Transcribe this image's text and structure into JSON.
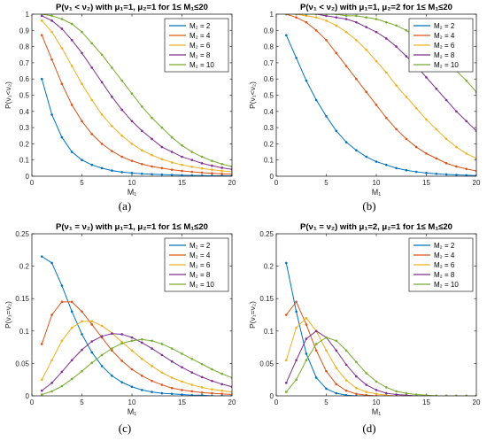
{
  "colors": {
    "series": [
      "#0072BD",
      "#D95319",
      "#EDB120",
      "#7E2F8E",
      "#77AC30"
    ],
    "axis": "#262626",
    "legend_border": "#262626",
    "background": "#ffffff"
  },
  "legend_labels": [
    "M₂ = 2",
    "M₂ = 4",
    "M₂ = 6",
    "M₂ = 8",
    "M₂ = 10"
  ],
  "chart_data": [
    {
      "id": "a",
      "caption": "(a)",
      "type": "line",
      "title": "P(ν₁ < ν₂) with μ₁=1, μ₂=1 for 1≤ M₁≤20",
      "xlabel": "M₁",
      "ylabel": "P(ν₁<ν₂)",
      "xlim": [
        0,
        20
      ],
      "ylim": [
        0,
        1
      ],
      "xticks": [
        0,
        5,
        10,
        15,
        20
      ],
      "yticks": [
        0,
        0.1,
        0.2,
        0.3,
        0.4,
        0.5,
        0.6,
        0.7,
        0.8,
        0.9,
        1
      ],
      "ytick_labels": [
        "0",
        "0.1",
        "0.2",
        "0.3",
        "0.4",
        "0.5",
        "0.6",
        "0.7",
        "0.8",
        "0.9",
        "1"
      ],
      "legend_position": "top-right",
      "grid": false,
      "x": [
        1,
        2,
        3,
        4,
        5,
        6,
        7,
        8,
        9,
        10,
        11,
        12,
        13,
        14,
        15,
        16,
        17,
        18,
        19,
        20
      ],
      "series": [
        {
          "name": "M₂ = 2",
          "values": [
            0.6,
            0.38,
            0.24,
            0.15,
            0.1,
            0.07,
            0.05,
            0.035,
            0.025,
            0.02,
            0.015,
            0.012,
            0.01,
            0.008,
            0.006,
            0.005,
            0.004,
            0.003,
            0.003,
            0.002
          ]
        },
        {
          "name": "M₂ = 4",
          "values": [
            0.87,
            0.72,
            0.57,
            0.44,
            0.34,
            0.26,
            0.2,
            0.155,
            0.12,
            0.095,
            0.075,
            0.06,
            0.05,
            0.04,
            0.033,
            0.027,
            0.022,
            0.018,
            0.015,
            0.012
          ]
        },
        {
          "name": "M₂ = 6",
          "values": [
            0.96,
            0.89,
            0.79,
            0.68,
            0.57,
            0.47,
            0.38,
            0.31,
            0.25,
            0.2,
            0.16,
            0.13,
            0.105,
            0.085,
            0.07,
            0.058,
            0.048,
            0.04,
            0.033,
            0.027
          ]
        },
        {
          "name": "M₂ = 8",
          "values": [
            0.99,
            0.96,
            0.91,
            0.84,
            0.76,
            0.67,
            0.58,
            0.49,
            0.41,
            0.34,
            0.28,
            0.23,
            0.18,
            0.15,
            0.12,
            0.1,
            0.08,
            0.065,
            0.052,
            0.042
          ]
        },
        {
          "name": "M₂ = 10",
          "values": [
            1.0,
            0.99,
            0.97,
            0.94,
            0.89,
            0.82,
            0.75,
            0.67,
            0.59,
            0.51,
            0.43,
            0.36,
            0.3,
            0.24,
            0.19,
            0.15,
            0.12,
            0.095,
            0.075,
            0.06
          ]
        }
      ]
    },
    {
      "id": "b",
      "caption": "(b)",
      "type": "line",
      "title": "P(ν₁ < ν₂) with μ₁=1, μ₂=2 for 1≤ M₁≤20",
      "xlabel": "M₁",
      "ylabel": "P(ν₁<ν₂)",
      "xlim": [
        0,
        20
      ],
      "ylim": [
        0,
        1
      ],
      "xticks": [
        0,
        5,
        10,
        15,
        20
      ],
      "yticks": [
        0,
        0.1,
        0.2,
        0.3,
        0.4,
        0.5,
        0.6,
        0.7,
        0.8,
        0.9,
        1
      ],
      "ytick_labels": [
        "0",
        "0.1",
        "0.2",
        "0.3",
        "0.4",
        "0.5",
        "0.6",
        "0.7",
        "0.8",
        "0.9",
        "1"
      ],
      "legend_position": "top-right",
      "grid": false,
      "x": [
        1,
        2,
        3,
        4,
        5,
        6,
        7,
        8,
        9,
        10,
        11,
        12,
        13,
        14,
        15,
        16,
        17,
        18,
        19,
        20
      ],
      "series": [
        {
          "name": "M₂ = 2",
          "values": [
            0.87,
            0.73,
            0.59,
            0.47,
            0.37,
            0.28,
            0.21,
            0.16,
            0.12,
            0.09,
            0.07,
            0.05,
            0.037,
            0.027,
            0.02,
            0.015,
            0.011,
            0.008,
            0.006,
            0.004
          ]
        },
        {
          "name": "M₂ = 4",
          "values": [
            1.0,
            0.98,
            0.95,
            0.9,
            0.84,
            0.76,
            0.68,
            0.6,
            0.52,
            0.44,
            0.36,
            0.29,
            0.23,
            0.18,
            0.14,
            0.11,
            0.08,
            0.06,
            0.045,
            0.033
          ]
        },
        {
          "name": "M₂ = 6",
          "values": [
            1.0,
            1.0,
            0.99,
            0.98,
            0.96,
            0.93,
            0.89,
            0.84,
            0.78,
            0.71,
            0.64,
            0.56,
            0.49,
            0.42,
            0.35,
            0.29,
            0.23,
            0.18,
            0.14,
            0.11
          ]
        },
        {
          "name": "M₂ = 8",
          "values": [
            1.0,
            1.0,
            1.0,
            1.0,
            0.99,
            0.98,
            0.97,
            0.95,
            0.92,
            0.89,
            0.85,
            0.8,
            0.74,
            0.68,
            0.61,
            0.54,
            0.47,
            0.4,
            0.34,
            0.28
          ]
        },
        {
          "name": "M₂ = 10",
          "values": [
            1.0,
            1.0,
            1.0,
            1.0,
            1.0,
            1.0,
            0.99,
            0.99,
            0.98,
            0.97,
            0.95,
            0.93,
            0.9,
            0.86,
            0.82,
            0.77,
            0.71,
            0.65,
            0.59,
            0.52
          ]
        }
      ]
    },
    {
      "id": "c",
      "caption": "(c)",
      "type": "line",
      "title": "P(ν₁ = ν₂) with μ₁=1, μ₂=1 for 1≤ M₁≤20",
      "xlabel": "M₁",
      "ylabel": "P(ν₁=ν₂)",
      "xlim": [
        0,
        20
      ],
      "ylim": [
        0,
        0.25
      ],
      "xticks": [
        0,
        5,
        10,
        15,
        20
      ],
      "yticks": [
        0,
        0.05,
        0.1,
        0.15,
        0.2,
        0.25
      ],
      "ytick_labels": [
        "0",
        "0.05",
        "0.1",
        "0.15",
        "0.2",
        "0.25"
      ],
      "legend_position": "top-right",
      "grid": false,
      "x": [
        1,
        2,
        3,
        4,
        5,
        6,
        7,
        8,
        9,
        10,
        11,
        12,
        13,
        14,
        15,
        16,
        17,
        18,
        19,
        20
      ],
      "series": [
        {
          "name": "M₂ = 2",
          "values": [
            0.215,
            0.205,
            0.17,
            0.13,
            0.095,
            0.067,
            0.046,
            0.031,
            0.021,
            0.014,
            0.009,
            0.006,
            0.004,
            0.003,
            0.002,
            0.001,
            0.001,
            0.0,
            0.0,
            0.0
          ]
        },
        {
          "name": "M₂ = 4",
          "values": [
            0.08,
            0.125,
            0.145,
            0.145,
            0.13,
            0.11,
            0.09,
            0.07,
            0.054,
            0.041,
            0.031,
            0.023,
            0.017,
            0.012,
            0.009,
            0.007,
            0.005,
            0.004,
            0.003,
            0.002
          ]
        },
        {
          "name": "M₂ = 6",
          "values": [
            0.025,
            0.055,
            0.085,
            0.105,
            0.115,
            0.115,
            0.108,
            0.097,
            0.083,
            0.07,
            0.057,
            0.046,
            0.036,
            0.028,
            0.022,
            0.017,
            0.013,
            0.01,
            0.008,
            0.006
          ]
        },
        {
          "name": "M₂ = 8",
          "values": [
            0.008,
            0.02,
            0.037,
            0.055,
            0.071,
            0.084,
            0.092,
            0.096,
            0.095,
            0.09,
            0.082,
            0.073,
            0.063,
            0.053,
            0.044,
            0.036,
            0.029,
            0.023,
            0.018,
            0.014
          ]
        },
        {
          "name": "M₂ = 10",
          "values": [
            0.002,
            0.007,
            0.015,
            0.026,
            0.038,
            0.051,
            0.063,
            0.073,
            0.081,
            0.085,
            0.087,
            0.085,
            0.08,
            0.073,
            0.065,
            0.057,
            0.049,
            0.041,
            0.034,
            0.028
          ]
        }
      ]
    },
    {
      "id": "d",
      "caption": "(d)",
      "type": "line",
      "title": "P(ν₁ = ν₂) with μ₁=2, μ₂=1 for 1≤ M₁≤20",
      "xlabel": "M₁",
      "ylabel": "P(ν₁=ν₂)",
      "xlim": [
        0,
        20
      ],
      "ylim": [
        0,
        0.25
      ],
      "xticks": [
        0,
        5,
        10,
        15,
        20
      ],
      "yticks": [
        0,
        0.05,
        0.1,
        0.15,
        0.2,
        0.25
      ],
      "ytick_labels": [
        "0",
        "0.05",
        "0.1",
        "0.15",
        "0.2",
        "0.25"
      ],
      "legend_position": "top-right",
      "grid": false,
      "x": [
        1,
        2,
        3,
        4,
        5,
        6,
        7,
        8,
        9,
        10,
        11,
        12,
        13,
        14,
        15,
        16,
        17,
        18,
        19,
        20
      ],
      "series": [
        {
          "name": "M₂ = 2",
          "values": [
            0.205,
            0.13,
            0.065,
            0.028,
            0.011,
            0.004,
            0.001,
            0.0,
            0.0,
            0.0,
            0.0,
            0.0,
            0.0,
            0.0,
            0.0,
            0.0,
            0.0,
            0.0,
            0.0,
            0.0
          ]
        },
        {
          "name": "M₂ = 4",
          "values": [
            0.125,
            0.145,
            0.11,
            0.07,
            0.038,
            0.018,
            0.008,
            0.003,
            0.001,
            0.0,
            0.0,
            0.0,
            0.0,
            0.0,
            0.0,
            0.0,
            0.0,
            0.0,
            0.0,
            0.0
          ]
        },
        {
          "name": "M₂ = 6",
          "values": [
            0.055,
            0.105,
            0.12,
            0.1,
            0.07,
            0.043,
            0.024,
            0.012,
            0.006,
            0.003,
            0.001,
            0.0,
            0.0,
            0.0,
            0.0,
            0.0,
            0.0,
            0.0,
            0.0,
            0.0
          ]
        },
        {
          "name": "M₂ = 8",
          "values": [
            0.02,
            0.055,
            0.088,
            0.1,
            0.09,
            0.07,
            0.048,
            0.03,
            0.017,
            0.009,
            0.004,
            0.002,
            0.001,
            0.0,
            0.0,
            0.0,
            0.0,
            0.0,
            0.0,
            0.0
          ]
        },
        {
          "name": "M₂ = 10",
          "values": [
            0.006,
            0.025,
            0.055,
            0.08,
            0.09,
            0.085,
            0.07,
            0.052,
            0.035,
            0.022,
            0.013,
            0.007,
            0.004,
            0.002,
            0.001,
            0.0,
            0.0,
            0.0,
            0.0,
            0.0
          ]
        }
      ]
    }
  ]
}
